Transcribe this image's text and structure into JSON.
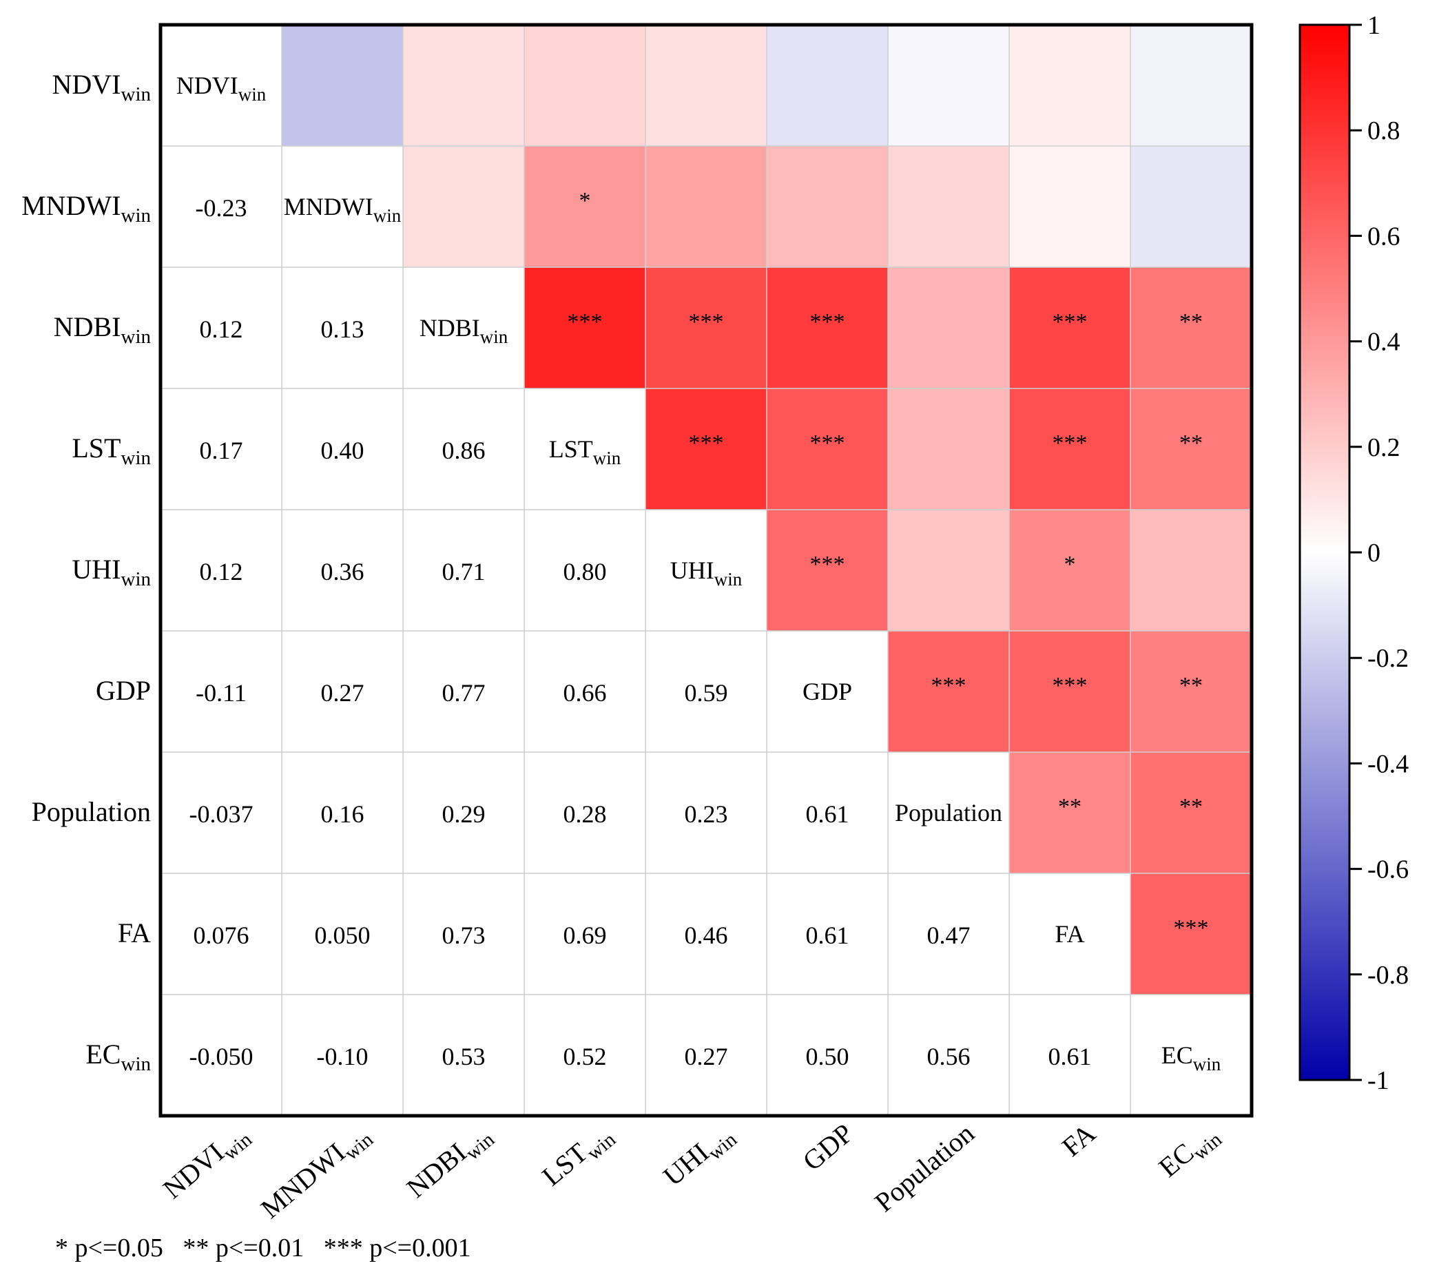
{
  "chart_data": {
    "type": "heatmap",
    "variables": [
      {
        "label": "NDVI",
        "sub": "win"
      },
      {
        "label": "MNDWI",
        "sub": "win"
      },
      {
        "label": "NDBI",
        "sub": "win"
      },
      {
        "label": "LST",
        "sub": "win"
      },
      {
        "label": "UHI",
        "sub": "win"
      },
      {
        "label": "GDP",
        "sub": ""
      },
      {
        "label": "Population",
        "sub": ""
      },
      {
        "label": "FA",
        "sub": ""
      },
      {
        "label": "EC",
        "sub": "win"
      }
    ],
    "lower_values": [
      [
        null
      ],
      [
        "-0.23",
        null
      ],
      [
        "0.12",
        "0.13",
        null
      ],
      [
        "0.17",
        "0.40",
        "0.86",
        null
      ],
      [
        "0.12",
        "0.36",
        "0.71",
        "0.80",
        null
      ],
      [
        "-0.11",
        "0.27",
        "0.77",
        "0.66",
        "0.59",
        null
      ],
      [
        "-0.037",
        "0.16",
        "0.29",
        "0.28",
        "0.23",
        "0.61",
        null
      ],
      [
        "0.076",
        "0.050",
        "0.73",
        "0.69",
        "0.46",
        "0.61",
        "0.47",
        null
      ],
      [
        "-0.050",
        "-0.10",
        "0.53",
        "0.52",
        "0.27",
        "0.50",
        "0.56",
        "0.61",
        null
      ]
    ],
    "upper_significance": [
      [
        "",
        "",
        "",
        "",
        "",
        "",
        "",
        "",
        ""
      ],
      [
        "",
        "",
        "",
        "*",
        "",
        "",
        "",
        "",
        ""
      ],
      [
        "",
        "",
        "",
        "***",
        "***",
        "***",
        "",
        "***",
        "**"
      ],
      [
        "",
        "",
        "",
        "",
        "***",
        "***",
        "",
        "***",
        "**"
      ],
      [
        "",
        "",
        "",
        "",
        "",
        "***",
        "",
        "*",
        ""
      ],
      [
        "",
        "",
        "",
        "",
        "",
        "",
        "***",
        "***",
        "**"
      ],
      [
        "",
        "",
        "",
        "",
        "",
        "",
        "",
        "**",
        "**"
      ],
      [
        "",
        "",
        "",
        "",
        "",
        "",
        "",
        "",
        "***"
      ],
      [
        "",
        "",
        "",
        "",
        "",
        "",
        "",
        "",
        ""
      ]
    ],
    "colorbar": {
      "range": [
        -1,
        1
      ],
      "ticks": [
        "1",
        "0.8",
        "0.6",
        "0.4",
        "0.2",
        "0",
        "-0.2",
        "-0.4",
        "-0.6",
        "-0.8",
        "-1"
      ],
      "colors": {
        "min": "#0000a8",
        "mid": "#ffffff",
        "max": "#ff0000"
      }
    },
    "significance_note": "* p<=0.05   ** p<=0.01   *** p<=0.001",
    "legend_placement": "right",
    "grid": true
  }
}
